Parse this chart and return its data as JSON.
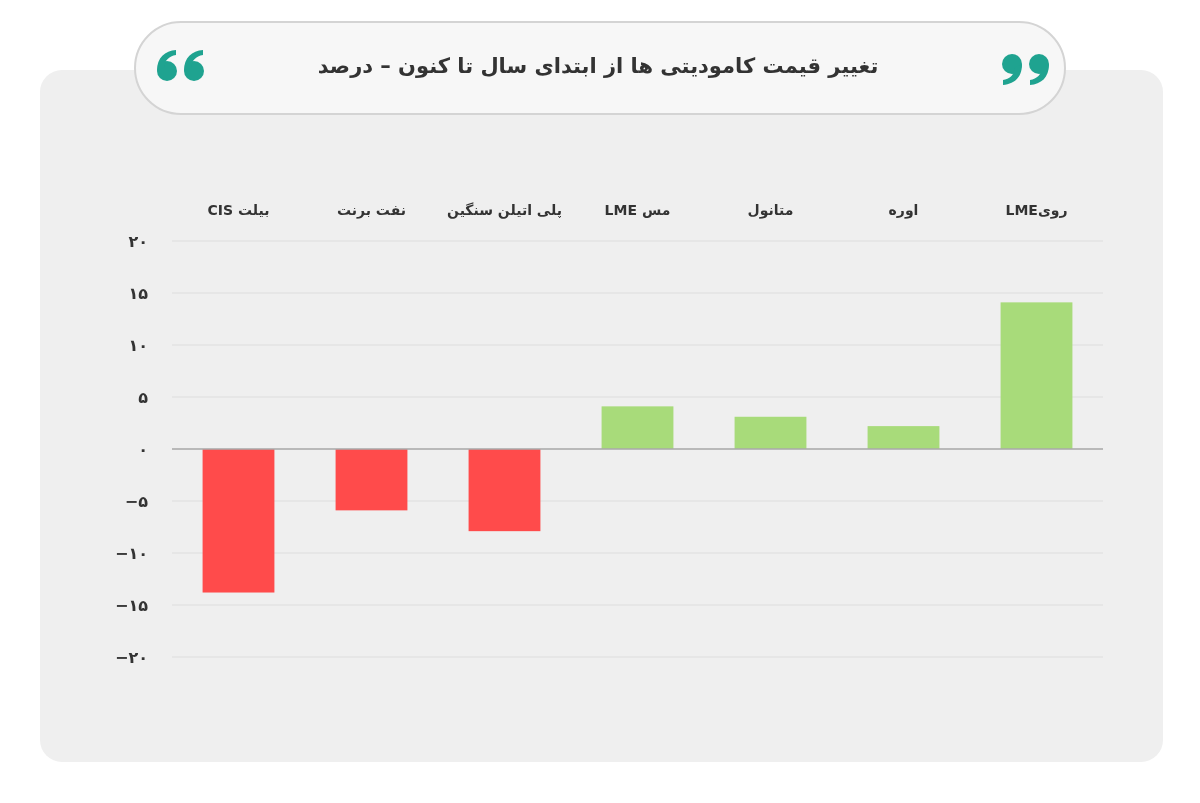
{
  "chart_data": {
    "type": "bar",
    "title": "تغییر قیمت کامودیتی ها از ابتدای سال تا کنون – درصد",
    "categories": [
      "بیلت CIS",
      "نفت برنت",
      "پلی اتیلن سنگین",
      "مس LME",
      "متانول",
      "اوره",
      "رویLME"
    ],
    "values": [
      -13.8,
      -5.9,
      -7.9,
      4.1,
      3.1,
      2.2,
      14.1
    ],
    "colors": [
      "#ff4b4b",
      "#ff4b4b",
      "#ff4b4b",
      "#a8db7a",
      "#a8db7a",
      "#a8db7a",
      "#a8db7a"
    ],
    "ylim": [
      -20,
      20
    ],
    "yticks": [
      {
        "value": 20,
        "label": "۲۰"
      },
      {
        "value": 15,
        "label": "۱۵"
      },
      {
        "value": 10,
        "label": "۱۰"
      },
      {
        "value": 5,
        "label": "۵"
      },
      {
        "value": 0,
        "label": "۰"
      },
      {
        "value": -5,
        "label": "−۵"
      },
      {
        "value": -10,
        "label": "−۱۰"
      },
      {
        "value": -15,
        "label": "−۱۵"
      },
      {
        "value": -20,
        "label": "−۲۰"
      }
    ],
    "grid": "y"
  }
}
